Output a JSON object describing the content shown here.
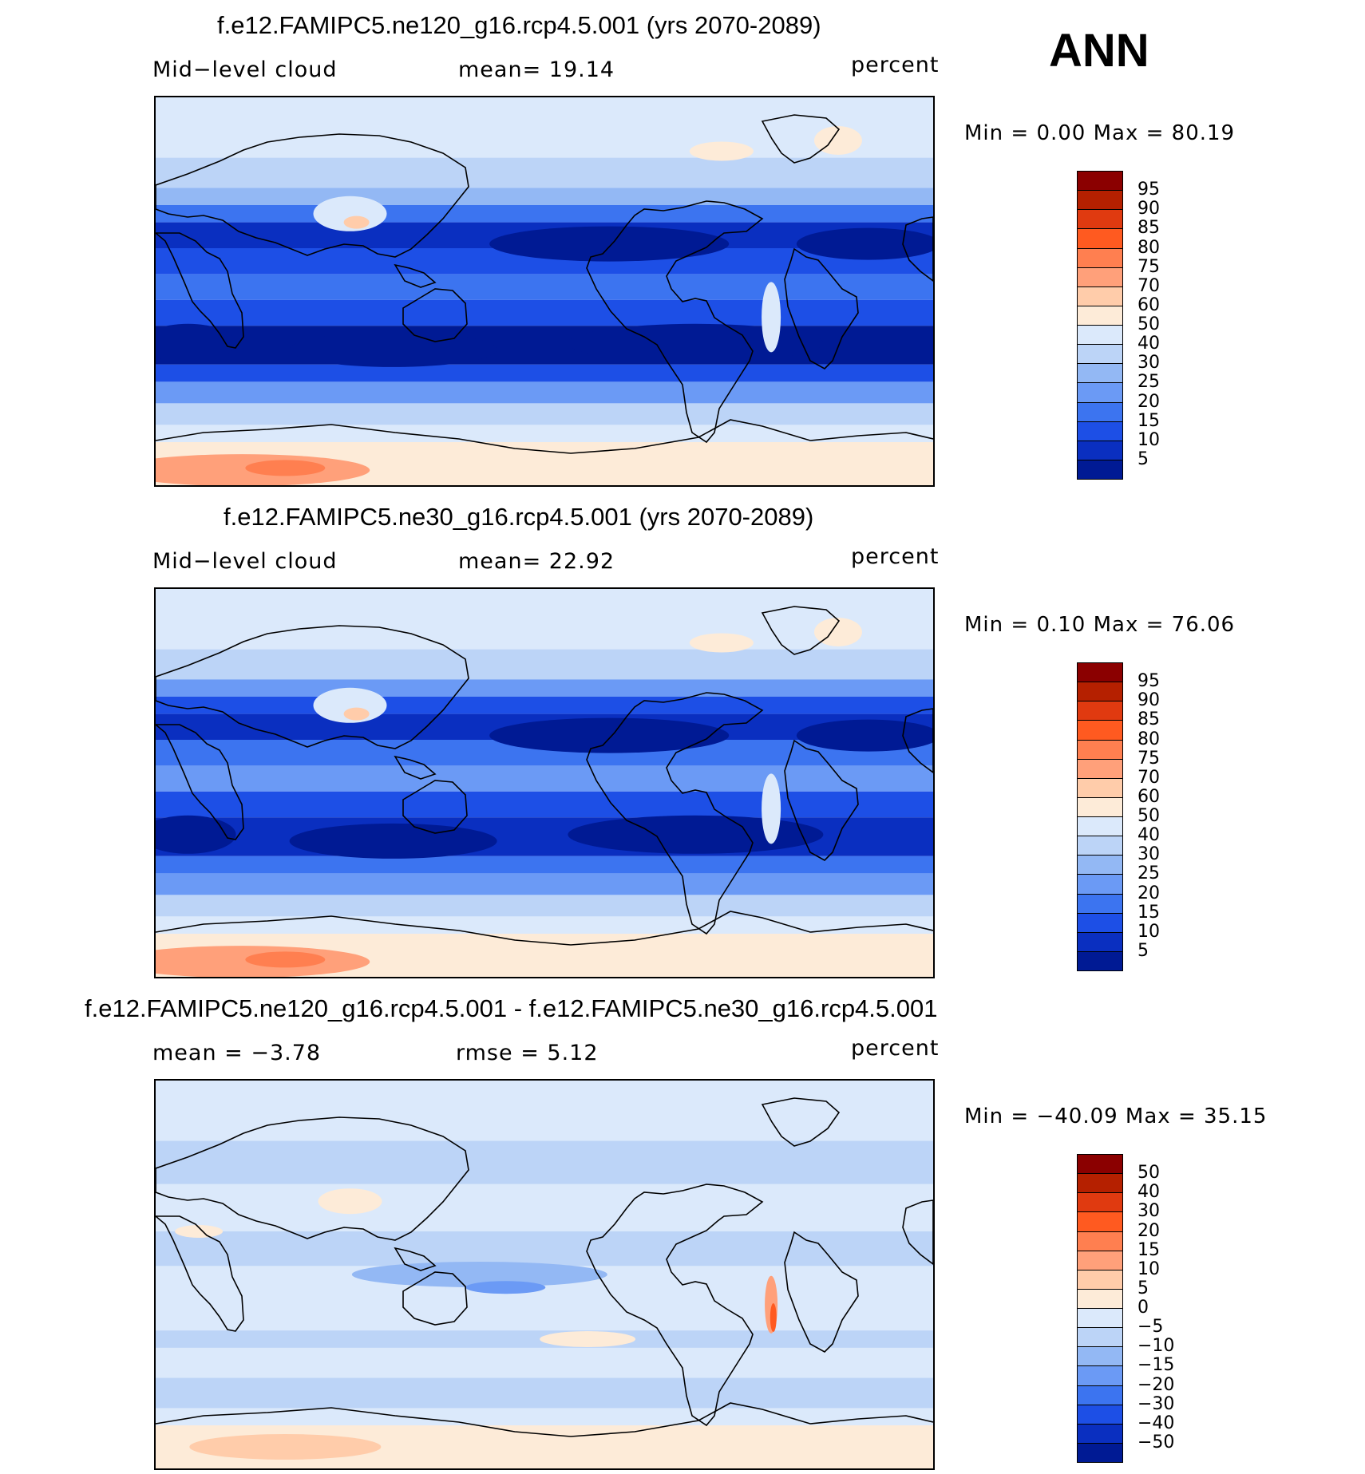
{
  "season": "ANN",
  "panels": [
    {
      "title": "f.e12.FAMIPC5.ne120_g16.rcp4.5.001 (yrs 2070-2089)",
      "left_label": "Mid−level cloud",
      "mid_label": "mean=   19.14",
      "units": "percent",
      "minmax": "Min  =     0.00  Max  =    80.19",
      "levels": [
        "95",
        "90",
        "85",
        "80",
        "75",
        "70",
        "60",
        "50",
        "40",
        "30",
        "25",
        "20",
        "15",
        "10",
        "5"
      ],
      "colors": [
        "#8b0000",
        "#b52000",
        "#e03a10",
        "#ff5a20",
        "#ff7f50",
        "#ffa07a",
        "#ffccaa",
        "#fdebd8",
        "#dbe9fb",
        "#bcd4f7",
        "#93b8f4",
        "#6b9af5",
        "#3c74f0",
        "#1d4fe6",
        "#0a2fc0",
        "#001a94"
      ]
    },
    {
      "title": "f.e12.FAMIPC5.ne30_g16.rcp4.5.001 (yrs 2070-2089)",
      "left_label": "Mid−level cloud",
      "mid_label": "mean=   22.92",
      "units": "percent",
      "minmax": "Min  =     0.10  Max  =    76.06",
      "levels": [
        "95",
        "90",
        "85",
        "80",
        "75",
        "70",
        "60",
        "50",
        "40",
        "30",
        "25",
        "20",
        "15",
        "10",
        "5"
      ],
      "colors": [
        "#8b0000",
        "#b52000",
        "#e03a10",
        "#ff5a20",
        "#ff7f50",
        "#ffa07a",
        "#ffccaa",
        "#fdebd8",
        "#dbe9fb",
        "#bcd4f7",
        "#93b8f4",
        "#6b9af5",
        "#3c74f0",
        "#1d4fe6",
        "#0a2fc0",
        "#001a94"
      ]
    },
    {
      "title": "f.e12.FAMIPC5.ne120_g16.rcp4.5.001 - f.e12.FAMIPC5.ne30_g16.rcp4.5.001",
      "left_label": "mean  =    −3.78",
      "mid_label": "rmse  =     5.12",
      "units": "percent",
      "minmax": "Min  = −40.09  Max  =    35.15",
      "levels": [
        "50",
        "40",
        "30",
        "20",
        "15",
        "10",
        "5",
        "0",
        "−5",
        "−10",
        "−15",
        "−20",
        "−30",
        "−40",
        "−50"
      ],
      "colors": [
        "#8b0000",
        "#b52000",
        "#e03a10",
        "#ff5a20",
        "#ff7f50",
        "#ffa07a",
        "#ffccaa",
        "#fdebd8",
        "#dbe9fb",
        "#bcd4f7",
        "#93b8f4",
        "#6b9af5",
        "#3c74f0",
        "#1d4fe6",
        "#0a2fc0",
        "#001a94"
      ]
    }
  ]
}
